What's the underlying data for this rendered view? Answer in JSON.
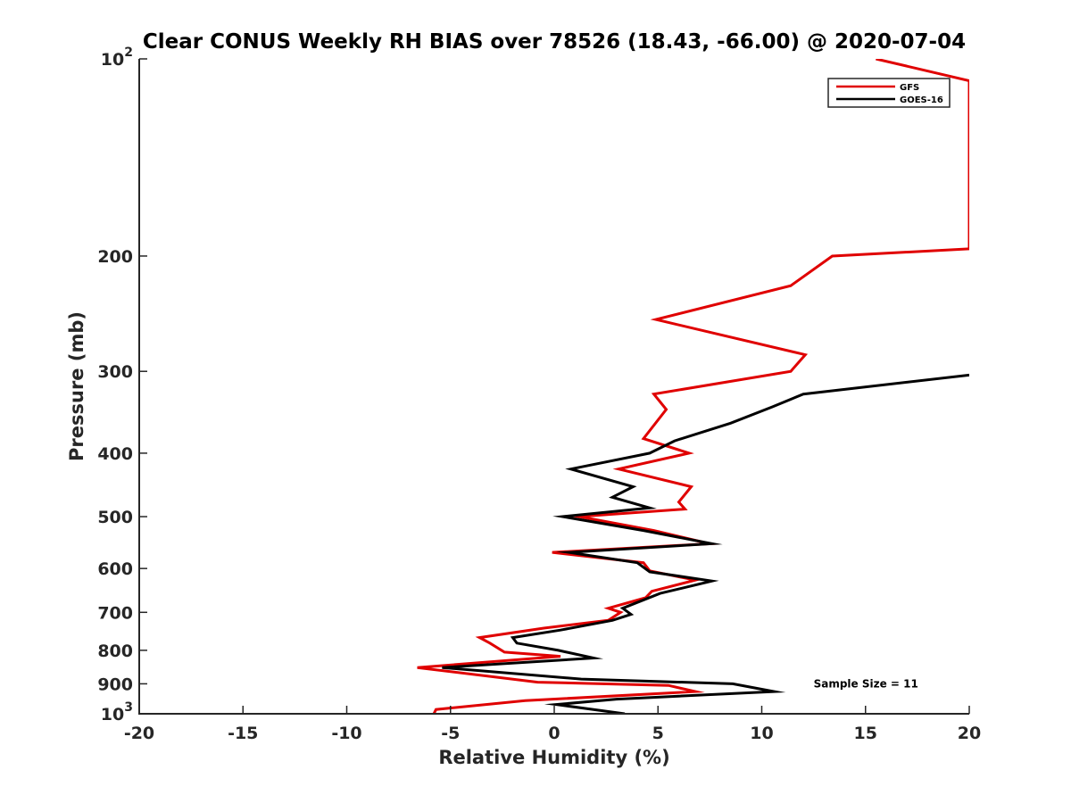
{
  "chart_data": {
    "type": "line",
    "title": "Clear CONUS Weekly RH BIAS over 78526 (18.43, -66.00) @ 2020-07-04",
    "xlabel": "Relative Humidity (%)",
    "ylabel": "Pressure (mb)",
    "xlim": [
      -20,
      20
    ],
    "ylim": [
      100,
      1000
    ],
    "y_scale": "log",
    "y_reversed": true,
    "grid": false,
    "legend_position": "top-right",
    "x_ticks": [
      {
        "value": -20,
        "label": "-20"
      },
      {
        "value": -15,
        "label": "-15"
      },
      {
        "value": -10,
        "label": "-10"
      },
      {
        "value": -5,
        "label": "-5"
      },
      {
        "value": 0,
        "label": "0"
      },
      {
        "value": 5,
        "label": "5"
      },
      {
        "value": 10,
        "label": "10"
      },
      {
        "value": 15,
        "label": "15"
      },
      {
        "value": 20,
        "label": "20"
      }
    ],
    "y_ticks": [
      {
        "value": 100,
        "base": "10",
        "exp": "2"
      },
      {
        "value": 200,
        "label": "200"
      },
      {
        "value": 300,
        "label": "300"
      },
      {
        "value": 400,
        "label": "400"
      },
      {
        "value": 500,
        "label": "500"
      },
      {
        "value": 600,
        "label": "600"
      },
      {
        "value": 700,
        "label": "700"
      },
      {
        "value": 800,
        "label": "800"
      },
      {
        "value": 900,
        "label": "900"
      },
      {
        "value": 1000,
        "base": "10",
        "exp": "3"
      }
    ],
    "series": [
      {
        "name": "GFS",
        "color": "#e00000",
        "points": [
          {
            "x": 15.5,
            "y": 100
          },
          {
            "x": 20,
            "y": 108
          },
          {
            "x": 20,
            "y": 195
          },
          {
            "x": 13.4,
            "y": 200
          },
          {
            "x": 11.4,
            "y": 222
          },
          {
            "x": 4.9,
            "y": 250
          },
          {
            "x": 12.1,
            "y": 283
          },
          {
            "x": 11.4,
            "y": 300
          },
          {
            "x": 4.8,
            "y": 325
          },
          {
            "x": 5.4,
            "y": 343
          },
          {
            "x": 4.3,
            "y": 380
          },
          {
            "x": 6.5,
            "y": 400
          },
          {
            "x": 3.1,
            "y": 423
          },
          {
            "x": 6.6,
            "y": 450
          },
          {
            "x": 6.0,
            "y": 475
          },
          {
            "x": 6.3,
            "y": 487
          },
          {
            "x": 1.2,
            "y": 500
          },
          {
            "x": 4.8,
            "y": 525
          },
          {
            "x": 7.5,
            "y": 550
          },
          {
            "x": -0.1,
            "y": 567
          },
          {
            "x": 4.3,
            "y": 588
          },
          {
            "x": 4.6,
            "y": 605
          },
          {
            "x": 6.8,
            "y": 625
          },
          {
            "x": 4.7,
            "y": 650
          },
          {
            "x": 4.4,
            "y": 665
          },
          {
            "x": 2.6,
            "y": 690
          },
          {
            "x": 3.2,
            "y": 700
          },
          {
            "x": 2.6,
            "y": 720
          },
          {
            "x": -0.5,
            "y": 740
          },
          {
            "x": -3.6,
            "y": 765
          },
          {
            "x": -3.1,
            "y": 780
          },
          {
            "x": -2.4,
            "y": 805
          },
          {
            "x": 0.3,
            "y": 817
          },
          {
            "x": -6.6,
            "y": 850
          },
          {
            "x": -0.8,
            "y": 895
          },
          {
            "x": 5.5,
            "y": 905
          },
          {
            "x": 6.8,
            "y": 925
          },
          {
            "x": -1.4,
            "y": 955
          },
          {
            "x": -5.7,
            "y": 985
          },
          {
            "x": -5.8,
            "y": 1000
          }
        ]
      },
      {
        "name": "GOES-16",
        "color": "#000000",
        "points": [
          {
            "x": 20,
            "y": 304
          },
          {
            "x": 12.0,
            "y": 325
          },
          {
            "x": 10.5,
            "y": 340
          },
          {
            "x": 8.5,
            "y": 360
          },
          {
            "x": 5.8,
            "y": 383
          },
          {
            "x": 4.6,
            "y": 400
          },
          {
            "x": 0.8,
            "y": 423
          },
          {
            "x": 3.8,
            "y": 450
          },
          {
            "x": 2.8,
            "y": 467
          },
          {
            "x": 4.6,
            "y": 485
          },
          {
            "x": 0.4,
            "y": 500
          },
          {
            "x": 4.3,
            "y": 525
          },
          {
            "x": 7.6,
            "y": 550
          },
          {
            "x": 0.7,
            "y": 567
          },
          {
            "x": 4.0,
            "y": 588
          },
          {
            "x": 4.6,
            "y": 607
          },
          {
            "x": 7.6,
            "y": 627
          },
          {
            "x": 5.1,
            "y": 655
          },
          {
            "x": 3.3,
            "y": 690
          },
          {
            "x": 3.7,
            "y": 705
          },
          {
            "x": 2.8,
            "y": 720
          },
          {
            "x": 0.3,
            "y": 745
          },
          {
            "x": -2.0,
            "y": 765
          },
          {
            "x": -1.8,
            "y": 780
          },
          {
            "x": 0.2,
            "y": 800
          },
          {
            "x": 1.9,
            "y": 822
          },
          {
            "x": -5.4,
            "y": 850
          },
          {
            "x": 1.3,
            "y": 885
          },
          {
            "x": 8.6,
            "y": 900
          },
          {
            "x": 10.6,
            "y": 925
          },
          {
            "x": 3.0,
            "y": 950
          },
          {
            "x": 0.1,
            "y": 968
          },
          {
            "x": 3.4,
            "y": 1000
          }
        ]
      }
    ],
    "annotations": [
      {
        "text": "Sample Size = 11",
        "x": 12.5,
        "y": 900
      }
    ]
  }
}
